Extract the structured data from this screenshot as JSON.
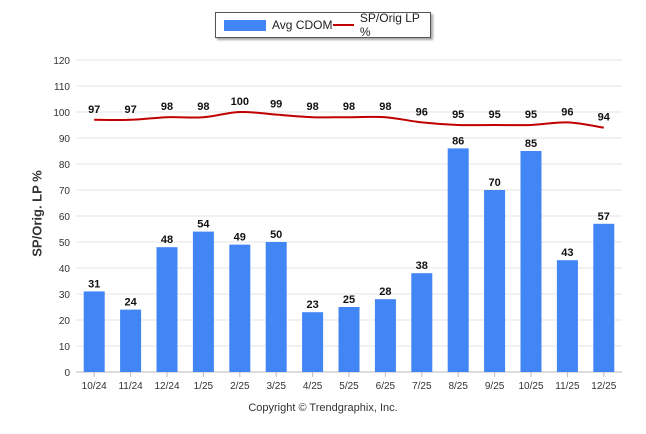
{
  "legend": {
    "bar_label": "Avg CDOM",
    "line_label": "SP/Orig LP %"
  },
  "copyright": "Copyright © Trendgraphix, Inc.",
  "colors": {
    "bar": "#4285f4",
    "line": "#c00000",
    "grid": "#e6e6e6"
  },
  "chart_data": {
    "type": "bar",
    "categories": [
      "10/24",
      "11/24",
      "12/24",
      "1/25",
      "2/25",
      "3/25",
      "4/25",
      "5/25",
      "6/25",
      "7/25",
      "8/25",
      "9/25",
      "10/25",
      "11/25",
      "12/25"
    ],
    "series": [
      {
        "name": "Avg CDOM",
        "type": "bar",
        "values": [
          31,
          24,
          48,
          54,
          49,
          50,
          23,
          25,
          28,
          38,
          86,
          70,
          85,
          43,
          57
        ]
      },
      {
        "name": "SP/Orig LP %",
        "type": "line",
        "values": [
          97,
          97,
          98,
          98,
          100,
          99,
          98,
          98,
          98,
          96,
          95,
          95,
          95,
          96,
          94
        ]
      }
    ],
    "xlabel": "",
    "ylabel": "SP/Orig. LP %",
    "ylim": [
      0,
      120
    ],
    "yticks": [
      0,
      10,
      20,
      30,
      40,
      50,
      60,
      70,
      80,
      90,
      100,
      110,
      120
    ],
    "grid": true,
    "legend_position": "top-center"
  }
}
